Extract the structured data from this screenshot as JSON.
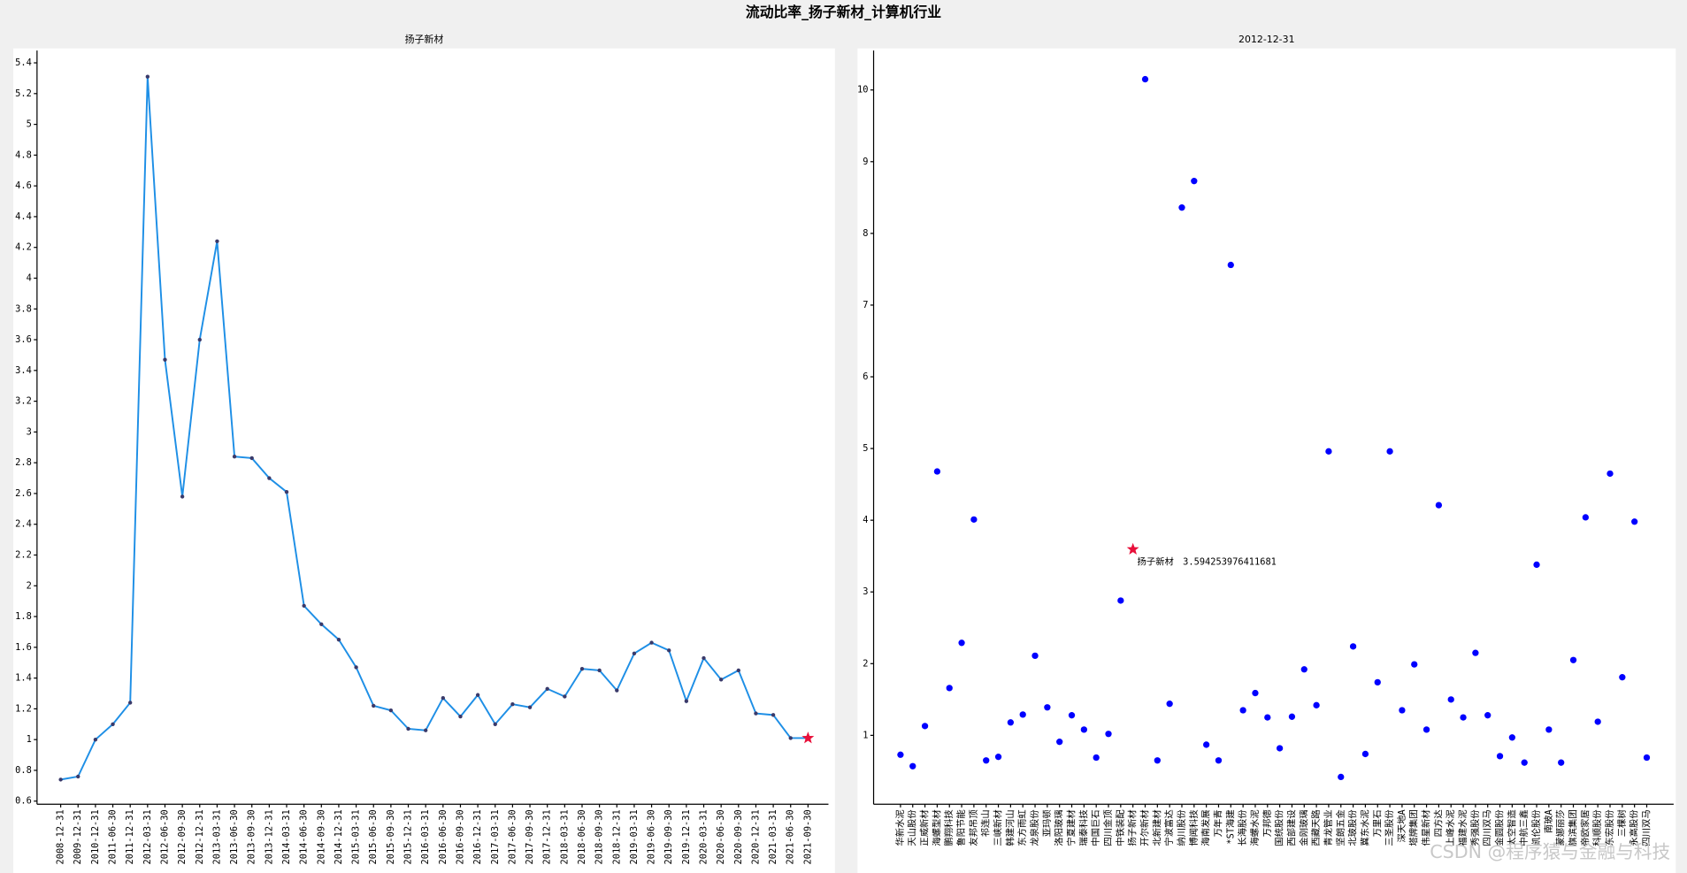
{
  "title": "流动比率_扬子新材_计算机行业",
  "watermark": "CSDN @程序猿与金融与科技",
  "chart_data": [
    {
      "type": "line",
      "title": "扬子新材",
      "categories": [
        "2008-12-31",
        "2009-12-31",
        "2010-12-31",
        "2011-06-30",
        "2011-12-31",
        "2012-03-31",
        "2012-06-30",
        "2012-09-30",
        "2012-12-31",
        "2013-03-31",
        "2013-06-30",
        "2013-09-30",
        "2013-12-31",
        "2014-03-31",
        "2014-06-30",
        "2014-09-30",
        "2014-12-31",
        "2015-03-31",
        "2015-06-30",
        "2015-09-30",
        "2015-12-31",
        "2016-03-31",
        "2016-06-30",
        "2016-09-30",
        "2016-12-31",
        "2017-03-31",
        "2017-06-30",
        "2017-09-30",
        "2017-12-31",
        "2018-03-31",
        "2018-06-30",
        "2018-09-30",
        "2018-12-31",
        "2019-03-31",
        "2019-06-30",
        "2019-09-30",
        "2019-12-31",
        "2020-03-31",
        "2020-06-30",
        "2020-09-30",
        "2020-12-31",
        "2021-03-31",
        "2021-06-30",
        "2021-09-30"
      ],
      "values": [
        0.74,
        0.76,
        1.0,
        1.1,
        1.24,
        5.31,
        3.47,
        2.58,
        3.6,
        4.24,
        2.84,
        2.83,
        2.7,
        2.61,
        1.87,
        1.75,
        1.65,
        1.47,
        1.22,
        1.19,
        1.07,
        1.06,
        1.27,
        1.15,
        1.29,
        1.1,
        1.23,
        1.21,
        1.33,
        1.28,
        1.46,
        1.45,
        1.32,
        1.56,
        1.63,
        1.58,
        1.25,
        1.53,
        1.39,
        1.45,
        1.17,
        1.16,
        1.01,
        1.01
      ],
      "color": "#1e8fe6",
      "marker_color": "#3a3a6a",
      "star_category": "2021-09-30",
      "star_color": "#e8103a",
      "ylim": [
        0.58,
        5.48
      ],
      "yticks": [
        0.6,
        0.8,
        1,
        1.2,
        1.4,
        1.6,
        1.8,
        2,
        2.2,
        2.4,
        2.6,
        2.8,
        3,
        3.2,
        3.4,
        3.6,
        3.8,
        4,
        4.2,
        4.4,
        4.6,
        4.8,
        5,
        5.2,
        5.4
      ]
    },
    {
      "type": "scatter",
      "title": "2012-12-31",
      "categories": [
        "华新水泥",
        "天山股份",
        "正威新材",
        "海螺型材",
        "鹏翔科技",
        "鲁阳节能",
        "友邦吊顶",
        "祁连山",
        "三峡新材",
        "韩建河山",
        "东方雨虹",
        "龙泉股份",
        "亚玛顿",
        "洛阳玻璃",
        "宁夏建材",
        "瑞泰科技",
        "中国巨石",
        "四川金顶",
        "中铁装配",
        "扬子新材",
        "开尔新材",
        "北新建材",
        "宁波富达",
        "纳川股份",
        "博闻科技",
        "海南发展",
        "万年青",
        "*ST海建",
        "长海股份",
        "海螺水泥",
        "万邦德",
        "国统股份",
        "西部建设",
        "金刚玻璃",
        "西藏天路",
        "青龙管业",
        "坚朗五金",
        "北玻股份",
        "冀东水泥",
        "万里石",
        "三圣股份",
        "深天地A",
        "塔牌集团",
        "伟星新材",
        "四方达",
        "上峰水泥",
        "福建水泥",
        "秀强股份",
        "四川双马",
        "金圆股份",
        "太空智造",
        "中航三鑫",
        "凯伦股份",
        "南玻A",
        "蒙娜丽莎",
        "旗滨集团",
        "帝欧家居",
        "科顺股份",
        "东宏股份",
        "三棵树",
        "永高股份",
        "四川双马"
      ],
      "values": [
        0.73,
        0.57,
        1.13,
        4.68,
        1.66,
        2.29,
        4.01,
        0.65,
        0.7,
        1.18,
        1.29,
        2.11,
        1.39,
        0.91,
        1.28,
        1.08,
        0.69,
        1.02,
        2.88,
        3.594253976411681,
        10.15,
        0.65,
        1.44,
        8.36,
        8.73,
        0.87,
        0.65,
        7.56,
        1.35,
        1.59,
        1.25,
        0.82,
        1.26,
        1.92,
        1.42,
        4.96,
        0.42,
        2.24,
        0.74,
        1.74,
        4.96,
        1.35,
        1.99,
        1.08,
        4.21,
        1.5,
        1.25,
        2.15,
        1.28,
        0.71,
        0.97,
        0.62,
        3.38,
        1.08,
        0.62,
        2.05,
        4.04,
        1.19,
        4.65,
        1.81,
        3.98,
        0.69
      ],
      "color": "#0000ff",
      "star_category": "扬子新材",
      "star_color": "#e8103a",
      "annotation": "扬子新材　3.594253976411681",
      "ylim": [
        0.04,
        10.55
      ],
      "yticks": [
        1,
        2,
        3,
        4,
        5,
        6,
        7,
        8,
        9,
        10
      ]
    }
  ]
}
